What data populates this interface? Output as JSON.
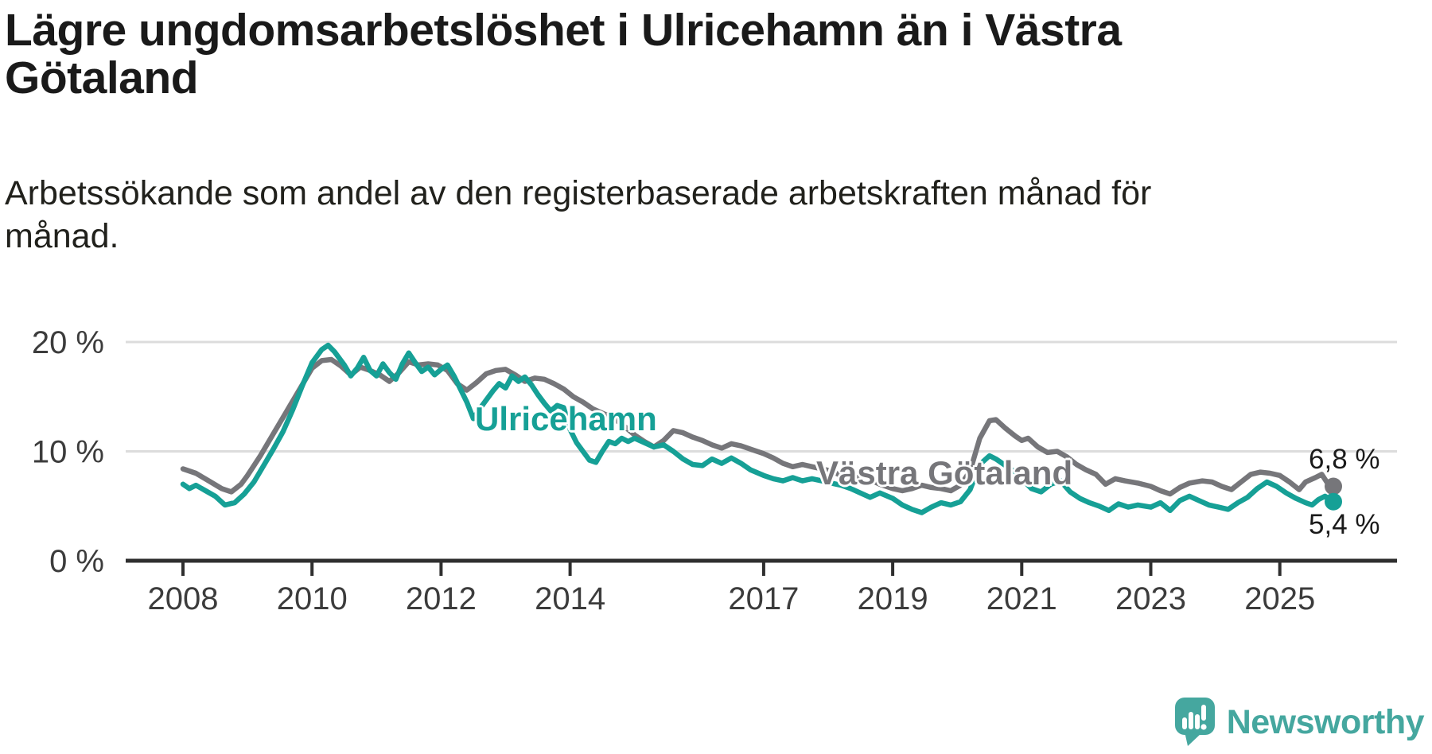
{
  "title_lines": [
    "Lägre ungdomsarbetslöshet i Ulricehamn än i Västra",
    "Götaland"
  ],
  "subtitle_lines": [
    "Arbetssökande som andel av den registerbaserade arbetskraften månad för",
    "månad."
  ],
  "branding": {
    "name": "Newsworthy"
  },
  "colors": {
    "ulricehamn": "#16a096",
    "vastra_gotaland": "#76767a",
    "grid": "#dcdcdc",
    "axis": "#2f2f2f",
    "tick_text": "#3c3c3c",
    "value_text": "#1a1a1a",
    "logo": "#45a79f"
  },
  "chart_data": {
    "type": "line",
    "title": "Lägre ungdomsarbetslöshet i Ulricehamn än i Västra Götaland",
    "subtitle": "Arbetssökande som andel av den registerbaserade arbetskraften månad för månad.",
    "unit": "%",
    "x_ticks": [
      "2008",
      "2010",
      "2012",
      "2014",
      "2017",
      "2019",
      "2021",
      "2023",
      "2025"
    ],
    "y_ticks": [
      {
        "value": 0,
        "label": "0 %"
      },
      {
        "value": 10,
        "label": "10 %"
      },
      {
        "value": 20,
        "label": "20 %"
      }
    ],
    "xlim": [
      2007.1,
      2026.8
    ],
    "ylim": [
      0,
      21.8
    ],
    "grid": "horizontal-only",
    "legend_position": "inline-labels",
    "series": [
      {
        "name": "Västra Götaland",
        "color": "#76767a",
        "end_value": 6.8,
        "end_label": "6,8 %",
        "points": [
          [
            2008.0,
            8.4
          ],
          [
            2008.2,
            8.0
          ],
          [
            2008.4,
            7.3
          ],
          [
            2008.6,
            6.6
          ],
          [
            2008.75,
            6.3
          ],
          [
            2008.9,
            7.0
          ],
          [
            2009.0,
            7.8
          ],
          [
            2009.2,
            9.6
          ],
          [
            2009.4,
            11.6
          ],
          [
            2009.6,
            13.6
          ],
          [
            2009.8,
            15.6
          ],
          [
            2010.0,
            17.6
          ],
          [
            2010.15,
            18.3
          ],
          [
            2010.3,
            18.4
          ],
          [
            2010.45,
            17.8
          ],
          [
            2010.6,
            17.0
          ],
          [
            2010.75,
            17.7
          ],
          [
            2010.9,
            17.4
          ],
          [
            2011.05,
            17.0
          ],
          [
            2011.2,
            16.4
          ],
          [
            2011.35,
            17.2
          ],
          [
            2011.5,
            18.2
          ],
          [
            2011.65,
            17.9
          ],
          [
            2011.8,
            18.0
          ],
          [
            2011.95,
            17.9
          ],
          [
            2012.1,
            17.4
          ],
          [
            2012.25,
            16.2
          ],
          [
            2012.4,
            15.6
          ],
          [
            2012.55,
            16.3
          ],
          [
            2012.7,
            17.1
          ],
          [
            2012.85,
            17.4
          ],
          [
            2013.0,
            17.5
          ],
          [
            2013.15,
            17.0
          ],
          [
            2013.3,
            16.4
          ],
          [
            2013.45,
            16.7
          ],
          [
            2013.6,
            16.6
          ],
          [
            2013.75,
            16.2
          ],
          [
            2013.9,
            15.7
          ],
          [
            2014.05,
            15.0
          ],
          [
            2014.2,
            14.5
          ],
          [
            2014.35,
            13.9
          ],
          [
            2014.5,
            13.5
          ],
          [
            2014.65,
            13.1
          ],
          [
            2014.8,
            12.5
          ],
          [
            2015.0,
            11.5
          ],
          [
            2015.15,
            10.9
          ],
          [
            2015.3,
            10.4
          ],
          [
            2015.45,
            11.0
          ],
          [
            2015.6,
            11.9
          ],
          [
            2015.75,
            11.7
          ],
          [
            2015.9,
            11.3
          ],
          [
            2016.05,
            11.0
          ],
          [
            2016.2,
            10.6
          ],
          [
            2016.35,
            10.3
          ],
          [
            2016.5,
            10.7
          ],
          [
            2016.65,
            10.5
          ],
          [
            2016.8,
            10.2
          ],
          [
            2017.0,
            9.8
          ],
          [
            2017.15,
            9.4
          ],
          [
            2017.3,
            8.9
          ],
          [
            2017.45,
            8.6
          ],
          [
            2017.6,
            8.8
          ],
          [
            2017.75,
            8.6
          ],
          [
            2017.9,
            8.4
          ],
          [
            2018.05,
            8.2
          ],
          [
            2018.2,
            7.8
          ],
          [
            2018.35,
            7.4
          ],
          [
            2018.5,
            7.7
          ],
          [
            2018.65,
            7.4
          ],
          [
            2018.8,
            7.0
          ],
          [
            2019.0,
            6.6
          ],
          [
            2019.15,
            6.4
          ],
          [
            2019.3,
            6.6
          ],
          [
            2019.45,
            6.9
          ],
          [
            2019.6,
            6.7
          ],
          [
            2019.75,
            6.6
          ],
          [
            2019.9,
            6.4
          ],
          [
            2020.05,
            6.9
          ],
          [
            2020.2,
            8.2
          ],
          [
            2020.35,
            11.2
          ],
          [
            2020.5,
            12.8
          ],
          [
            2020.6,
            12.9
          ],
          [
            2020.75,
            12.1
          ],
          [
            2020.9,
            11.4
          ],
          [
            2021.0,
            11.0
          ],
          [
            2021.1,
            11.2
          ],
          [
            2021.25,
            10.4
          ],
          [
            2021.4,
            9.9
          ],
          [
            2021.55,
            10.0
          ],
          [
            2021.7,
            9.5
          ],
          [
            2021.85,
            8.8
          ],
          [
            2022.0,
            8.3
          ],
          [
            2022.15,
            7.9
          ],
          [
            2022.3,
            7.0
          ],
          [
            2022.45,
            7.5
          ],
          [
            2022.6,
            7.3
          ],
          [
            2022.8,
            7.1
          ],
          [
            2023.0,
            6.8
          ],
          [
            2023.15,
            6.4
          ],
          [
            2023.3,
            6.1
          ],
          [
            2023.45,
            6.7
          ],
          [
            2023.6,
            7.1
          ],
          [
            2023.8,
            7.3
          ],
          [
            2023.95,
            7.2
          ],
          [
            2024.1,
            6.8
          ],
          [
            2024.25,
            6.5
          ],
          [
            2024.4,
            7.2
          ],
          [
            2024.55,
            7.9
          ],
          [
            2024.7,
            8.1
          ],
          [
            2024.85,
            8.0
          ],
          [
            2025.0,
            7.8
          ],
          [
            2025.15,
            7.2
          ],
          [
            2025.3,
            6.5
          ],
          [
            2025.4,
            7.2
          ],
          [
            2025.55,
            7.6
          ],
          [
            2025.65,
            7.9
          ],
          [
            2025.75,
            7.0
          ],
          [
            2025.83,
            6.8
          ]
        ]
      },
      {
        "name": "Ulricehamn",
        "color": "#16a096",
        "end_value": 5.4,
        "end_label": "5,4 %",
        "points": [
          [
            2008.0,
            7.0
          ],
          [
            2008.1,
            6.6
          ],
          [
            2008.2,
            6.9
          ],
          [
            2008.35,
            6.4
          ],
          [
            2008.5,
            5.9
          ],
          [
            2008.65,
            5.1
          ],
          [
            2008.8,
            5.3
          ],
          [
            2008.95,
            6.1
          ],
          [
            2009.1,
            7.2
          ],
          [
            2009.25,
            8.7
          ],
          [
            2009.4,
            10.2
          ],
          [
            2009.55,
            11.8
          ],
          [
            2009.7,
            13.8
          ],
          [
            2009.85,
            16.0
          ],
          [
            2010.0,
            18.1
          ],
          [
            2010.15,
            19.3
          ],
          [
            2010.25,
            19.7
          ],
          [
            2010.35,
            19.1
          ],
          [
            2010.5,
            17.9
          ],
          [
            2010.6,
            16.9
          ],
          [
            2010.7,
            17.6
          ],
          [
            2010.8,
            18.6
          ],
          [
            2010.9,
            17.4
          ],
          [
            2011.0,
            16.9
          ],
          [
            2011.1,
            18.0
          ],
          [
            2011.2,
            17.2
          ],
          [
            2011.3,
            16.6
          ],
          [
            2011.4,
            18.0
          ],
          [
            2011.5,
            19.0
          ],
          [
            2011.6,
            18.1
          ],
          [
            2011.7,
            17.3
          ],
          [
            2011.8,
            17.7
          ],
          [
            2011.9,
            17.0
          ],
          [
            2012.0,
            17.5
          ],
          [
            2012.1,
            17.9
          ],
          [
            2012.2,
            16.9
          ],
          [
            2012.3,
            15.7
          ],
          [
            2012.4,
            14.5
          ],
          [
            2012.5,
            13.0
          ],
          [
            2012.6,
            13.9
          ],
          [
            2012.7,
            14.7
          ],
          [
            2012.8,
            15.5
          ],
          [
            2012.9,
            16.2
          ],
          [
            2013.0,
            15.8
          ],
          [
            2013.1,
            16.9
          ],
          [
            2013.2,
            16.4
          ],
          [
            2013.3,
            16.8
          ],
          [
            2013.4,
            16.1
          ],
          [
            2013.5,
            15.2
          ],
          [
            2013.6,
            14.4
          ],
          [
            2013.7,
            13.7
          ],
          [
            2013.8,
            14.2
          ],
          [
            2013.9,
            14.0
          ],
          [
            2014.0,
            12.0
          ],
          [
            2014.1,
            10.8
          ],
          [
            2014.2,
            10.0
          ],
          [
            2014.3,
            9.2
          ],
          [
            2014.4,
            9.0
          ],
          [
            2014.5,
            10.0
          ],
          [
            2014.6,
            10.9
          ],
          [
            2014.7,
            10.7
          ],
          [
            2014.8,
            11.2
          ],
          [
            2014.9,
            10.9
          ],
          [
            2015.0,
            11.2
          ],
          [
            2015.15,
            10.8
          ],
          [
            2015.3,
            10.4
          ],
          [
            2015.45,
            10.6
          ],
          [
            2015.6,
            10.0
          ],
          [
            2015.75,
            9.3
          ],
          [
            2015.9,
            8.8
          ],
          [
            2016.05,
            8.7
          ],
          [
            2016.2,
            9.3
          ],
          [
            2016.35,
            8.9
          ],
          [
            2016.5,
            9.4
          ],
          [
            2016.65,
            8.9
          ],
          [
            2016.8,
            8.3
          ],
          [
            2017.0,
            7.8
          ],
          [
            2017.15,
            7.5
          ],
          [
            2017.3,
            7.3
          ],
          [
            2017.45,
            7.6
          ],
          [
            2017.6,
            7.3
          ],
          [
            2017.75,
            7.5
          ],
          [
            2017.9,
            7.3
          ],
          [
            2018.05,
            7.1
          ],
          [
            2018.2,
            6.9
          ],
          [
            2018.35,
            6.6
          ],
          [
            2018.5,
            6.2
          ],
          [
            2018.65,
            5.8
          ],
          [
            2018.8,
            6.2
          ],
          [
            2019.0,
            5.7
          ],
          [
            2019.15,
            5.1
          ],
          [
            2019.3,
            4.7
          ],
          [
            2019.45,
            4.4
          ],
          [
            2019.6,
            4.9
          ],
          [
            2019.75,
            5.3
          ],
          [
            2019.9,
            5.1
          ],
          [
            2020.05,
            5.4
          ],
          [
            2020.2,
            6.5
          ],
          [
            2020.35,
            8.8
          ],
          [
            2020.5,
            9.6
          ],
          [
            2020.6,
            9.3
          ],
          [
            2020.75,
            8.7
          ],
          [
            2020.9,
            8.1
          ],
          [
            2021.0,
            7.5
          ],
          [
            2021.15,
            6.6
          ],
          [
            2021.3,
            6.3
          ],
          [
            2021.45,
            7.0
          ],
          [
            2021.6,
            7.3
          ],
          [
            2021.75,
            6.3
          ],
          [
            2021.9,
            5.7
          ],
          [
            2022.05,
            5.3
          ],
          [
            2022.2,
            5.0
          ],
          [
            2022.35,
            4.6
          ],
          [
            2022.5,
            5.2
          ],
          [
            2022.65,
            4.9
          ],
          [
            2022.8,
            5.1
          ],
          [
            2023.0,
            4.9
          ],
          [
            2023.15,
            5.3
          ],
          [
            2023.3,
            4.6
          ],
          [
            2023.45,
            5.5
          ],
          [
            2023.6,
            5.9
          ],
          [
            2023.75,
            5.5
          ],
          [
            2023.9,
            5.1
          ],
          [
            2024.05,
            4.9
          ],
          [
            2024.2,
            4.7
          ],
          [
            2024.35,
            5.3
          ],
          [
            2024.5,
            5.8
          ],
          [
            2024.65,
            6.6
          ],
          [
            2024.8,
            7.2
          ],
          [
            2024.95,
            6.8
          ],
          [
            2025.1,
            6.2
          ],
          [
            2025.25,
            5.7
          ],
          [
            2025.4,
            5.3
          ],
          [
            2025.5,
            5.1
          ],
          [
            2025.6,
            5.6
          ],
          [
            2025.7,
            5.9
          ],
          [
            2025.83,
            5.4
          ]
        ]
      }
    ]
  }
}
